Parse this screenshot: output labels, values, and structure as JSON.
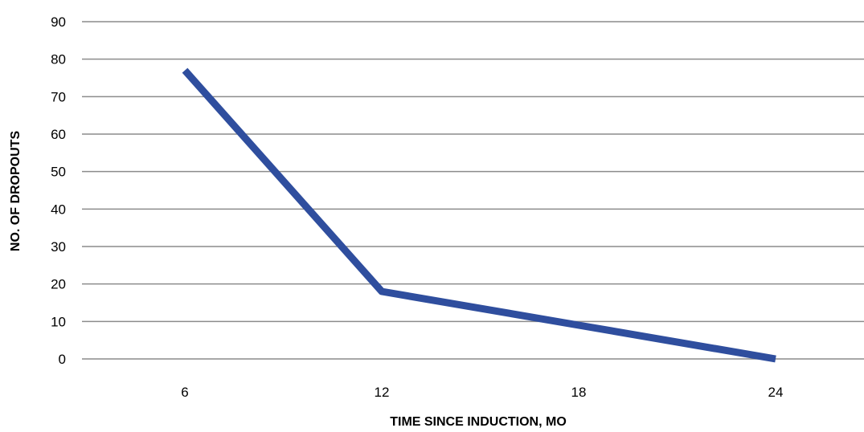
{
  "chart_data": {
    "type": "line",
    "categories": [
      "6",
      "12",
      "18",
      "24"
    ],
    "series": [
      {
        "values": [
          77,
          18,
          9,
          0
        ],
        "color": "#2f4e9e"
      }
    ],
    "xlabel": "TIME SINCE INDUCTION, MO",
    "ylabel": "NO. OF DROPOUTS",
    "ylim": [
      0,
      90
    ],
    "yticks": [
      0,
      10,
      20,
      30,
      40,
      50,
      60,
      70,
      80,
      90
    ],
    "grid": true,
    "gridline_color": "#8c8c8c",
    "legend": "none"
  }
}
